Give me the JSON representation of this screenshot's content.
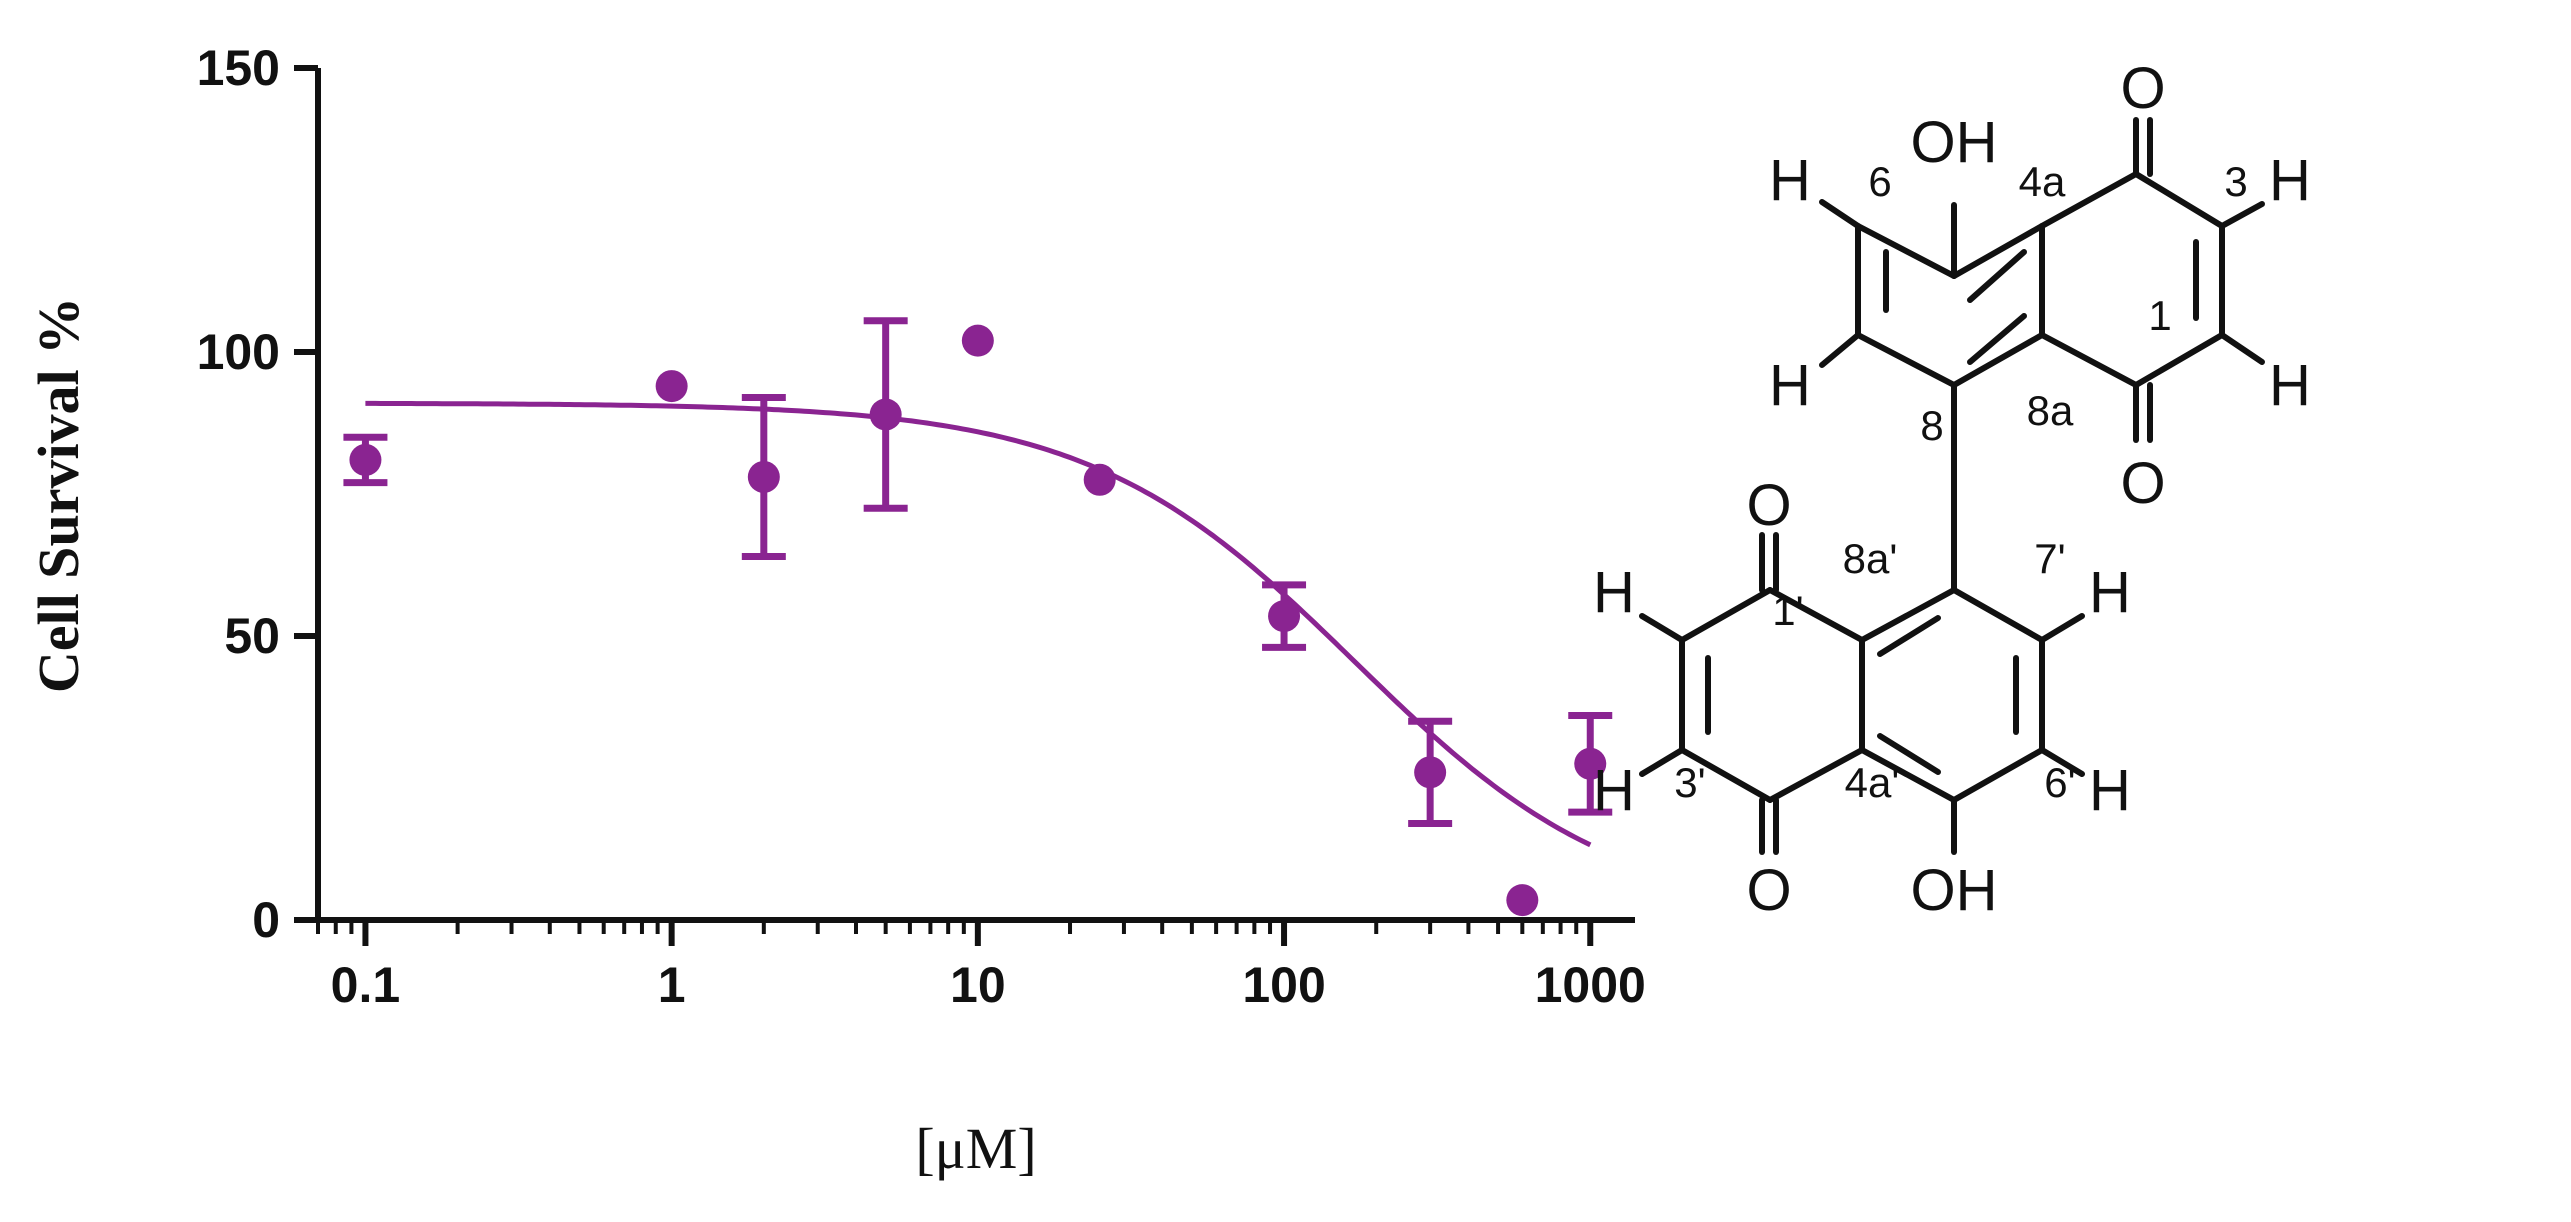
{
  "chart_data": {
    "type": "scatter",
    "xscale": "log",
    "xlim": [
      0.07,
      1400
    ],
    "ylim": [
      0,
      150
    ],
    "xlabel": "[μM]",
    "ylabel": "Cell Survival %",
    "x_ticks": [
      0.1,
      1,
      10,
      100,
      1000
    ],
    "x_tick_labels": [
      "0.1",
      "1",
      "10",
      "100",
      "1000"
    ],
    "y_ticks": [
      0,
      50,
      100,
      150
    ],
    "y_tick_labels": [
      "0",
      "50",
      "100",
      "150"
    ],
    "series": [
      {
        "name": "Cell survival",
        "color": "#8a2491",
        "points": [
          {
            "x": 0.1,
            "y": 81,
            "err": 4
          },
          {
            "x": 1,
            "y": 94,
            "err": 0
          },
          {
            "x": 2,
            "y": 78,
            "err": 14
          },
          {
            "x": 5,
            "y": 89,
            "err": 16.5
          },
          {
            "x": 10,
            "y": 102,
            "err": 0
          },
          {
            "x": 25,
            "y": 77.5,
            "err": 0
          },
          {
            "x": 100,
            "y": 53.5,
            "err": 5.5
          },
          {
            "x": 300,
            "y": 26,
            "err": 9
          },
          {
            "x": 600,
            "y": 3.5,
            "err": 0
          },
          {
            "x": 1000,
            "y": 27.5,
            "err": 8.5
          }
        ]
      }
    ],
    "fit_curve": {
      "model": "four-parameter logistic",
      "top": 91,
      "bottom": 0,
      "ic50": 170,
      "hill": 1.0,
      "x_range": [
        0.1,
        1000
      ]
    }
  },
  "structure": {
    "atoms": {
      "oh_top": "OH",
      "o_top_right": "O",
      "o_mid_top": "O",
      "o_mid_bottom": "O",
      "o_bottom_left": "O",
      "oh_bottom": "OH",
      "h": "H"
    },
    "positions": {
      "p6": "6",
      "p4a": "4a",
      "p3": "3",
      "p1": "1",
      "p8": "8",
      "p8a": "8a",
      "p8a_prime": "8a'",
      "p7_prime": "7'",
      "p1_prime": "1'",
      "p3_prime": "3'",
      "p4a_prime": "4a'",
      "p6_prime": "6'"
    }
  }
}
